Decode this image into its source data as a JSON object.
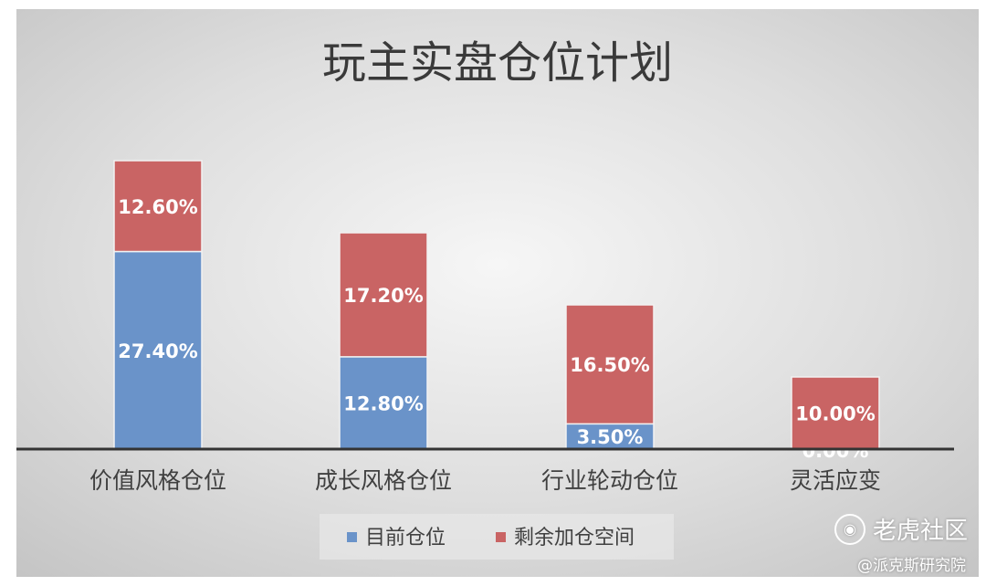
{
  "chart_data": {
    "type": "bar",
    "stacked": true,
    "title": "玩主实盘仓位计划",
    "categories": [
      "价值风格仓位",
      "成长风格仓位",
      "行业轮动仓位",
      "灵活应变"
    ],
    "series": [
      {
        "name": "目前仓位",
        "color": "#6a93c9",
        "values": [
          27.4,
          12.8,
          3.5,
          0.0
        ],
        "labels": [
          "27.40%",
          "12.80%",
          "3.50%",
          "0.00%"
        ]
      },
      {
        "name": "剩余加仓空间",
        "color": "#c96464",
        "values": [
          12.6,
          17.2,
          16.5,
          10.0
        ],
        "labels": [
          "12.60%",
          "17.20%",
          "16.50%",
          "10.00%"
        ]
      }
    ],
    "ylim": [
      0,
      40
    ],
    "grid": false,
    "legend_position": "bottom",
    "background": "radial gradient gray"
  },
  "watermark": {
    "brand": "老虎社区",
    "author": "@派克斯研究院",
    "icon": "tiger-logo-icon"
  }
}
